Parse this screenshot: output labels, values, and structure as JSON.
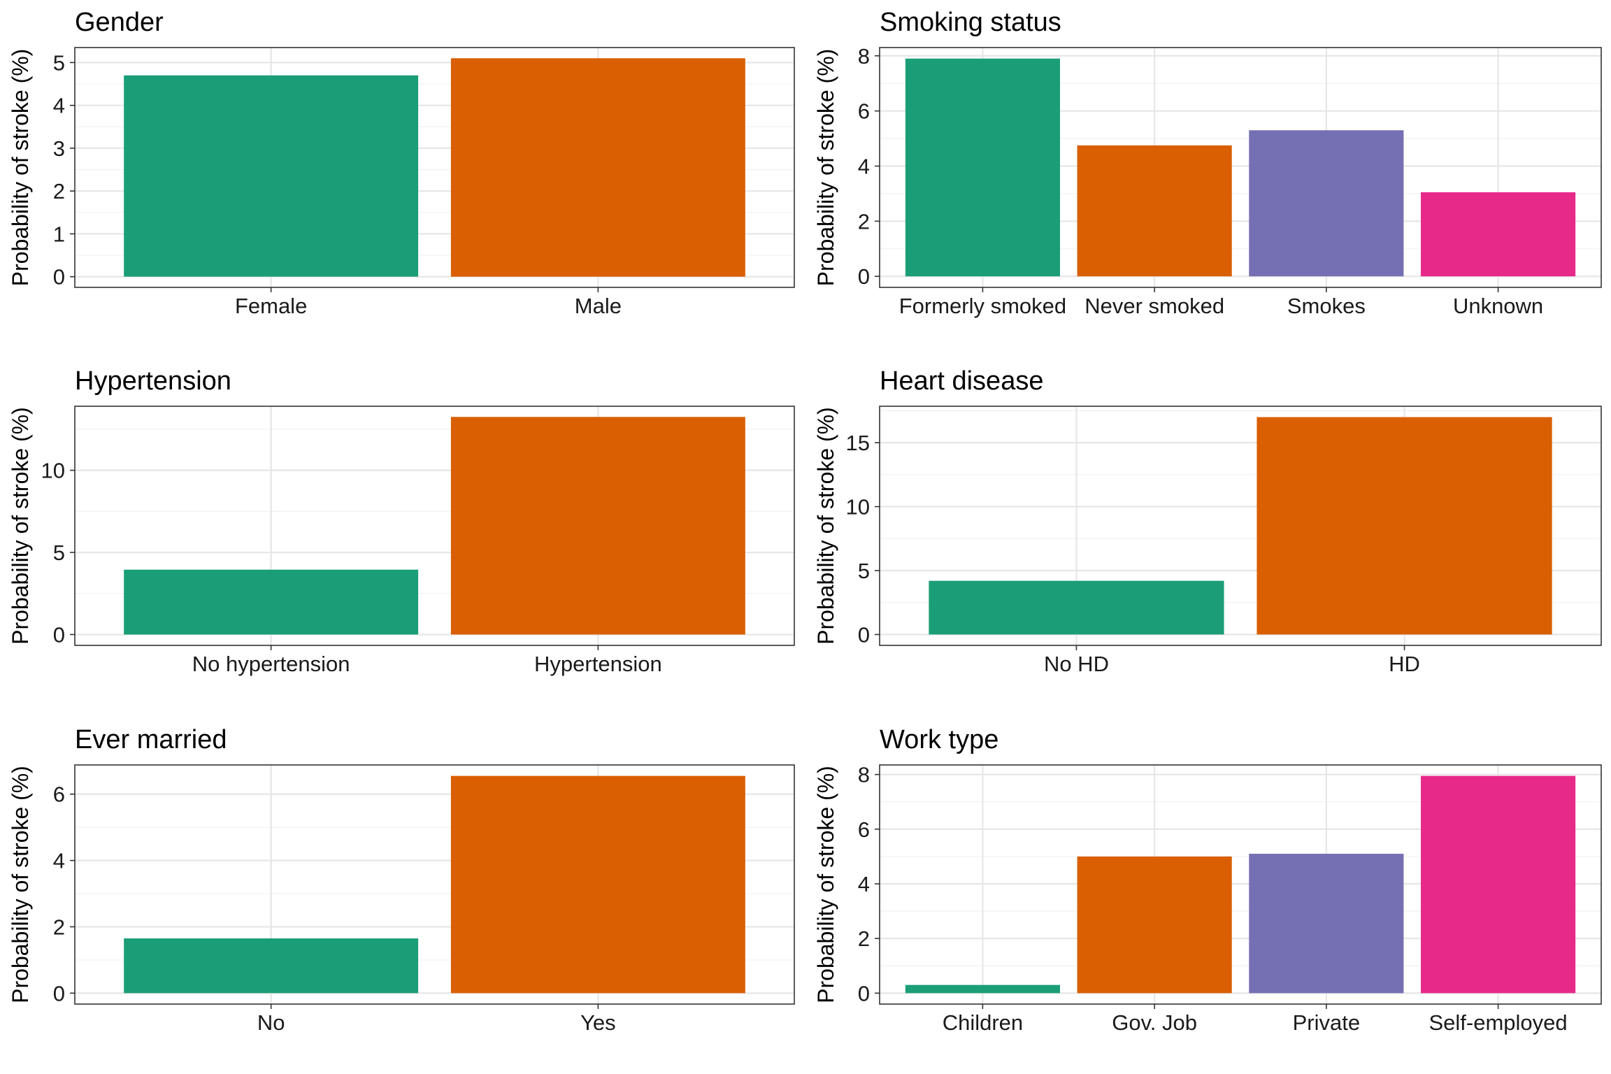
{
  "palette": [
    "#1b9e77",
    "#d95f02",
    "#7570b3",
    "#e7298a"
  ],
  "chart_data": [
    {
      "type": "bar",
      "title": "Gender",
      "ylabel": "Probability of stroke (%)",
      "categories": [
        "Female",
        "Male"
      ],
      "values": [
        4.7,
        5.1
      ],
      "ylim": [
        -0.25,
        5.35
      ],
      "yticks": [
        0,
        1,
        2,
        3,
        4,
        5
      ],
      "grid": true
    },
    {
      "type": "bar",
      "title": "Smoking status",
      "ylabel": "Probability of stroke (%)",
      "categories": [
        "Formerly smoked",
        "Never smoked",
        "Smokes",
        "Unknown"
      ],
      "values": [
        7.9,
        4.75,
        5.3,
        3.05
      ],
      "ylim": [
        -0.4,
        8.3
      ],
      "yticks": [
        0,
        2,
        4,
        6,
        8
      ],
      "grid": true
    },
    {
      "type": "bar",
      "title": "Hypertension",
      "ylabel": "Probability of stroke (%)",
      "categories": [
        "No hypertension",
        "Hypertension"
      ],
      "values": [
        3.95,
        13.25
      ],
      "ylim": [
        -0.66,
        13.9
      ],
      "yticks": [
        0,
        5,
        10
      ],
      "grid": true
    },
    {
      "type": "bar",
      "title": "Heart disease",
      "ylabel": "Probability of stroke (%)",
      "categories": [
        "No HD",
        "HD"
      ],
      "values": [
        4.2,
        17.0
      ],
      "ylim": [
        -0.85,
        17.85
      ],
      "yticks": [
        0,
        5,
        10,
        15
      ],
      "grid": true
    },
    {
      "type": "bar",
      "title": "Ever married",
      "ylabel": "Probability of stroke (%)",
      "categories": [
        "No",
        "Yes"
      ],
      "values": [
        1.65,
        6.55
      ],
      "ylim": [
        -0.33,
        6.88
      ],
      "yticks": [
        0,
        2,
        4,
        6
      ],
      "grid": true
    },
    {
      "type": "bar",
      "title": "Work type",
      "ylabel": "Probability of stroke (%)",
      "categories": [
        "Children",
        "Gov. Job",
        "Private",
        "Self-employed"
      ],
      "values": [
        0.3,
        5.0,
        5.1,
        7.95
      ],
      "ylim": [
        -0.4,
        8.35
      ],
      "yticks": [
        0,
        2,
        4,
        6,
        8
      ],
      "grid": true
    }
  ]
}
